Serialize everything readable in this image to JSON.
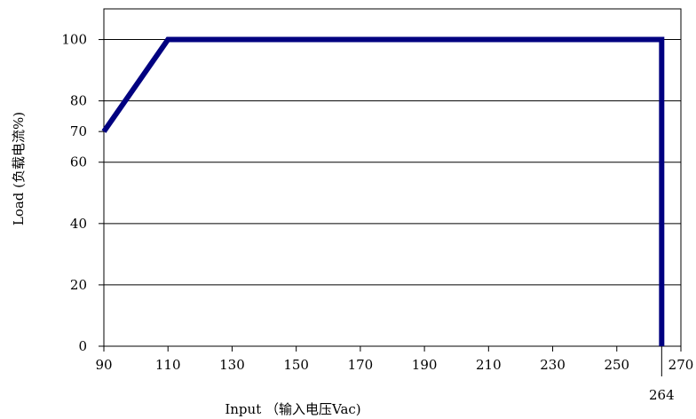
{
  "chart_data": {
    "type": "line",
    "title": "",
    "xlabel": "Input （输入电压Vac)",
    "ylabel": "Load (负载电流%)",
    "xlim": [
      90,
      270
    ],
    "ylim": [
      0,
      110
    ],
    "x_ticks": [
      90,
      110,
      130,
      150,
      170,
      190,
      210,
      230,
      250,
      270
    ],
    "y_ticks": [
      0,
      20,
      40,
      60,
      70,
      80,
      100
    ],
    "grid": "horizontal",
    "extra_x_tick": 264,
    "series": [
      {
        "color": "#000080",
        "points": [
          [
            90,
            70
          ],
          [
            110,
            100
          ],
          [
            264,
            100
          ],
          [
            264,
            0
          ]
        ]
      }
    ]
  }
}
